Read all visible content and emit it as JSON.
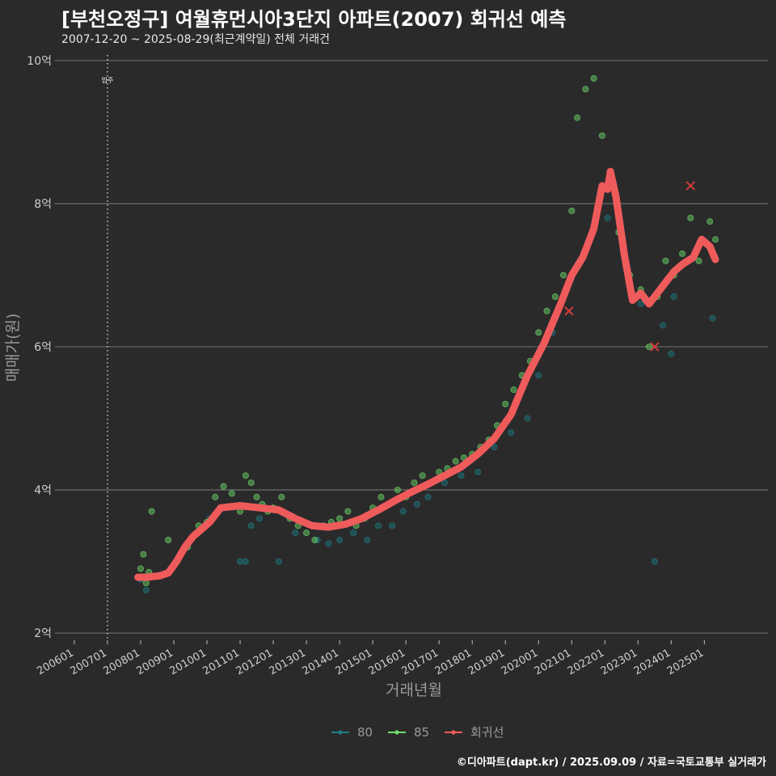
{
  "title": "[부천오정구] 여월휴먼시아3단지 아파트(2007) 회귀선 예측",
  "subtitle": "2007-12-20 ~ 2025-08-29(최근계약일) 전체 거래건",
  "caption": "©디아파트(dapt.kr) / 2025.09.09 / 자료=국토교통부 실거래가",
  "colors": {
    "background": "#2b2a2b",
    "grid": "#8a8a8a",
    "area80": "#1b7f86",
    "area85": "#6ee06a",
    "regression": "#ef5b5b",
    "marker_x": "#d23c3c"
  },
  "chart_data": {
    "type": "scatter",
    "title": "[부천오정구] 여월휴먼시아3단지 아파트(2007) 회귀선 예측",
    "subtitle": "2007-12-20 ~ 2025-08-29(최근계약일) 전체 거래건",
    "xlabel": "거래년월",
    "ylabel": "매매가(원)",
    "x_ticks": [
      "200601",
      "200701",
      "200801",
      "200901",
      "201001",
      "201101",
      "201201",
      "201301",
      "201401",
      "201501",
      "201601",
      "201701",
      "201801",
      "201901",
      "202001",
      "202101",
      "202201",
      "202301",
      "202401",
      "202501"
    ],
    "y_ticks": [
      "2억",
      "4억",
      "6억",
      "8억",
      "10억"
    ],
    "y_tick_values": [
      2,
      4,
      6,
      8,
      10
    ],
    "y_unit": "억",
    "xlim": [
      "2005-06",
      "2026-12"
    ],
    "ylim": [
      1.9,
      10.1
    ],
    "grid": "horizontal",
    "legend_position": "bottom",
    "annotation": {
      "label": "입주",
      "x": "2007-01"
    },
    "series": [
      {
        "name": "80",
        "type": "scatter",
        "points": [
          [
            "2008-01",
            2.75
          ],
          [
            "2008-03",
            2.6
          ],
          [
            "2008-06",
            2.8
          ],
          [
            "2010-02",
            3.6
          ],
          [
            "2011-01",
            3.0
          ],
          [
            "2011-03",
            3.0
          ],
          [
            "2011-05",
            3.5
          ],
          [
            "2011-08",
            3.6
          ],
          [
            "2012-03",
            3.0
          ],
          [
            "2012-09",
            3.4
          ],
          [
            "2013-05",
            3.3
          ],
          [
            "2013-09",
            3.25
          ],
          [
            "2014-01",
            3.3
          ],
          [
            "2014-06",
            3.4
          ],
          [
            "2014-11",
            3.3
          ],
          [
            "2015-03",
            3.5
          ],
          [
            "2015-08",
            3.5
          ],
          [
            "2015-12",
            3.7
          ],
          [
            "2016-05",
            3.8
          ],
          [
            "2016-09",
            3.9
          ],
          [
            "2017-03",
            4.1
          ],
          [
            "2017-09",
            4.2
          ],
          [
            "2018-03",
            4.25
          ],
          [
            "2018-09",
            4.6
          ],
          [
            "2019-03",
            4.8
          ],
          [
            "2019-09",
            5.0
          ],
          [
            "2020-01",
            5.6
          ],
          [
            "2020-06",
            6.2
          ],
          [
            "2020-11",
            6.8
          ],
          [
            "2021-04",
            7.2
          ],
          [
            "2022-02",
            7.8
          ],
          [
            "2022-08",
            7.3
          ],
          [
            "2023-02",
            6.6
          ],
          [
            "2023-07",
            3.0
          ],
          [
            "2023-10",
            6.3
          ],
          [
            "2024-01",
            5.9
          ],
          [
            "2024-02",
            6.7
          ],
          [
            "2025-04",
            6.4
          ]
        ]
      },
      {
        "name": "85",
        "type": "scatter",
        "points": [
          [
            "2008-01",
            2.9
          ],
          [
            "2008-02",
            3.1
          ],
          [
            "2008-03",
            2.7
          ],
          [
            "2008-04",
            2.85
          ],
          [
            "2008-05",
            3.7
          ],
          [
            "2008-07",
            2.8
          ],
          [
            "2008-11",
            3.3
          ],
          [
            "2009-02",
            3.0
          ],
          [
            "2009-06",
            3.2
          ],
          [
            "2009-10",
            3.5
          ],
          [
            "2010-01",
            3.55
          ],
          [
            "2010-04",
            3.9
          ],
          [
            "2010-07",
            4.05
          ],
          [
            "2010-10",
            3.95
          ],
          [
            "2011-01",
            3.7
          ],
          [
            "2011-03",
            4.2
          ],
          [
            "2011-05",
            4.1
          ],
          [
            "2011-07",
            3.9
          ],
          [
            "2011-09",
            3.8
          ],
          [
            "2011-11",
            3.7
          ],
          [
            "2012-01",
            3.75
          ],
          [
            "2012-04",
            3.9
          ],
          [
            "2012-07",
            3.6
          ],
          [
            "2012-10",
            3.5
          ],
          [
            "2013-01",
            3.4
          ],
          [
            "2013-04",
            3.3
          ],
          [
            "2013-07",
            3.5
          ],
          [
            "2013-10",
            3.55
          ],
          [
            "2014-01",
            3.6
          ],
          [
            "2014-04",
            3.7
          ],
          [
            "2014-07",
            3.5
          ],
          [
            "2014-10",
            3.6
          ],
          [
            "2015-01",
            3.75
          ],
          [
            "2015-04",
            3.9
          ],
          [
            "2015-07",
            3.8
          ],
          [
            "2015-10",
            4.0
          ],
          [
            "2016-01",
            3.9
          ],
          [
            "2016-04",
            4.1
          ],
          [
            "2016-07",
            4.2
          ],
          [
            "2016-10",
            4.1
          ],
          [
            "2017-01",
            4.25
          ],
          [
            "2017-04",
            4.3
          ],
          [
            "2017-07",
            4.4
          ],
          [
            "2017-10",
            4.45
          ],
          [
            "2018-01",
            4.5
          ],
          [
            "2018-04",
            4.6
          ],
          [
            "2018-07",
            4.7
          ],
          [
            "2018-10",
            4.9
          ],
          [
            "2019-01",
            5.2
          ],
          [
            "2019-04",
            5.4
          ],
          [
            "2019-07",
            5.6
          ],
          [
            "2019-10",
            5.8
          ],
          [
            "2020-01",
            6.2
          ],
          [
            "2020-04",
            6.5
          ],
          [
            "2020-07",
            6.7
          ],
          [
            "2020-10",
            7.0
          ],
          [
            "2021-01",
            7.9
          ],
          [
            "2021-03",
            9.2
          ],
          [
            "2021-06",
            9.6
          ],
          [
            "2021-09",
            9.75
          ],
          [
            "2021-12",
            8.95
          ],
          [
            "2022-03",
            8.3
          ],
          [
            "2022-06",
            7.6
          ],
          [
            "2022-10",
            7.0
          ],
          [
            "2023-02",
            6.8
          ],
          [
            "2023-05",
            6.0
          ],
          [
            "2023-08",
            6.7
          ],
          [
            "2023-11",
            7.2
          ],
          [
            "2024-02",
            7.0
          ],
          [
            "2024-05",
            7.3
          ],
          [
            "2024-08",
            7.8
          ],
          [
            "2024-11",
            7.2
          ],
          [
            "2025-03",
            7.75
          ],
          [
            "2025-05",
            7.5
          ]
        ]
      },
      {
        "name": "회귀선",
        "type": "line",
        "points": [
          [
            "2007-12",
            2.78
          ],
          [
            "2008-03",
            2.78
          ],
          [
            "2008-08",
            2.8
          ],
          [
            "2008-11",
            2.84
          ],
          [
            "2009-02",
            3.0
          ],
          [
            "2009-05",
            3.2
          ],
          [
            "2009-08",
            3.35
          ],
          [
            "2009-11",
            3.45
          ],
          [
            "2010-02",
            3.55
          ],
          [
            "2010-06",
            3.75
          ],
          [
            "2011-01",
            3.78
          ],
          [
            "2011-08",
            3.75
          ],
          [
            "2012-03",
            3.72
          ],
          [
            "2012-09",
            3.6
          ],
          [
            "2013-03",
            3.5
          ],
          [
            "2013-09",
            3.48
          ],
          [
            "2014-03",
            3.52
          ],
          [
            "2014-09",
            3.6
          ],
          [
            "2015-03",
            3.72
          ],
          [
            "2015-09",
            3.85
          ],
          [
            "2016-03",
            3.97
          ],
          [
            "2016-09",
            4.08
          ],
          [
            "2017-03",
            4.2
          ],
          [
            "2017-09",
            4.32
          ],
          [
            "2018-03",
            4.5
          ],
          [
            "2018-09",
            4.72
          ],
          [
            "2019-03",
            5.05
          ],
          [
            "2019-09",
            5.6
          ],
          [
            "2020-03",
            6.05
          ],
          [
            "2020-09",
            6.6
          ],
          [
            "2021-01",
            7.0
          ],
          [
            "2021-05",
            7.25
          ],
          [
            "2021-09",
            7.65
          ],
          [
            "2021-12",
            8.25
          ],
          [
            "2022-02",
            8.2
          ],
          [
            "2022-03",
            8.45
          ],
          [
            "2022-05",
            8.1
          ],
          [
            "2022-08",
            7.3
          ],
          [
            "2022-11",
            6.65
          ],
          [
            "2023-02",
            6.75
          ],
          [
            "2023-05",
            6.6
          ],
          [
            "2023-08",
            6.75
          ],
          [
            "2023-11",
            6.9
          ],
          [
            "2024-02",
            7.05
          ],
          [
            "2024-05",
            7.15
          ],
          [
            "2024-09",
            7.25
          ],
          [
            "2024-12",
            7.5
          ],
          [
            "2025-03",
            7.4
          ],
          [
            "2025-05",
            7.22
          ]
        ]
      }
    ],
    "x_markers": [
      {
        "x": "2020-12",
        "y": 6.5
      },
      {
        "x": "2023-07",
        "y": 6.0
      },
      {
        "x": "2024-08",
        "y": 8.25
      }
    ],
    "legend": [
      "80",
      "85",
      "회귀선"
    ]
  }
}
